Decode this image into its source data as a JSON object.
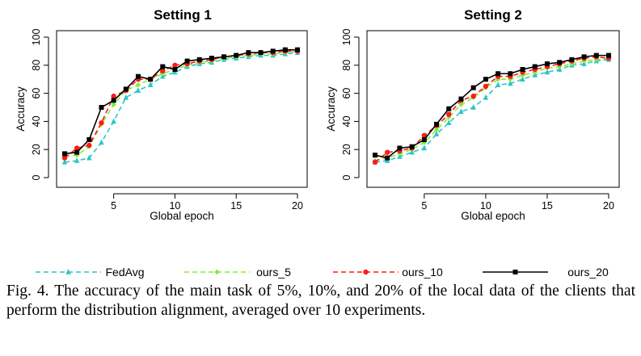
{
  "chart_data": [
    {
      "type": "line",
      "title": "Setting 1",
      "xlabel": "Global epoch",
      "ylabel": "Accuracy",
      "xlim": [
        1,
        20
      ],
      "ylim": [
        0,
        100
      ],
      "xticks": [
        5,
        10,
        15,
        20
      ],
      "yticks": [
        0,
        20,
        40,
        60,
        80,
        100
      ],
      "x": [
        1,
        2,
        3,
        4,
        5,
        6,
        7,
        8,
        9,
        10,
        11,
        12,
        13,
        14,
        15,
        16,
        17,
        18,
        19,
        20
      ],
      "series": [
        {
          "name": "FedAvg",
          "values": [
            11,
            12,
            14,
            25,
            40,
            57,
            62,
            66,
            72,
            75,
            79,
            81,
            82,
            84,
            85,
            86,
            87,
            87,
            88,
            89
          ]
        },
        {
          "name": "ours_5",
          "values": [
            15,
            16,
            22,
            38,
            52,
            62,
            66,
            70,
            74,
            77,
            80,
            82,
            83,
            85,
            86,
            87,
            88,
            88,
            89,
            90
          ]
        },
        {
          "name": "ours_10",
          "values": [
            14,
            21,
            23,
            39,
            58,
            62,
            70,
            70,
            76,
            80,
            81,
            83,
            84,
            86,
            87,
            88,
            89,
            89,
            90,
            90
          ]
        },
        {
          "name": "ours_20",
          "values": [
            17,
            18,
            27,
            50,
            55,
            63,
            72,
            70,
            79,
            77,
            83,
            84,
            85,
            86,
            87,
            89,
            89,
            90,
            91,
            91
          ]
        }
      ]
    },
    {
      "type": "line",
      "title": "Setting 2",
      "xlabel": "Global epoch",
      "ylabel": "Accuracy",
      "xlim": [
        1,
        20
      ],
      "ylim": [
        0,
        100
      ],
      "xticks": [
        5,
        10,
        15,
        20
      ],
      "yticks": [
        0,
        20,
        40,
        60,
        80,
        100
      ],
      "x": [
        1,
        2,
        3,
        4,
        5,
        6,
        7,
        8,
        9,
        10,
        11,
        12,
        13,
        14,
        15,
        16,
        17,
        18,
        19,
        20
      ],
      "series": [
        {
          "name": "FedAvg",
          "values": [
            11,
            12,
            15,
            18,
            21,
            31,
            39,
            47,
            50,
            57,
            66,
            67,
            70,
            73,
            75,
            77,
            80,
            81,
            83,
            84
          ]
        },
        {
          "name": "ours_5",
          "values": [
            12,
            14,
            17,
            20,
            25,
            34,
            43,
            52,
            57,
            64,
            70,
            70,
            73,
            75,
            78,
            79,
            81,
            83,
            84,
            85
          ]
        },
        {
          "name": "ours_10",
          "values": [
            11,
            18,
            19,
            21,
            30,
            37,
            45,
            55,
            58,
            65,
            72,
            72,
            75,
            77,
            79,
            81,
            83,
            85,
            86,
            85
          ]
        },
        {
          "name": "ours_20",
          "values": [
            16,
            14,
            21,
            22,
            27,
            38,
            49,
            56,
            64,
            70,
            74,
            74,
            77,
            79,
            81,
            82,
            84,
            86,
            87,
            87
          ]
        }
      ]
    }
  ],
  "series_style": [
    {
      "name": "FedAvg",
      "color": "#2ec4c4",
      "marker": "triangle",
      "dash": "6,4"
    },
    {
      "name": "ours_5",
      "color": "#7ef02c",
      "marker": "diamond",
      "dash": "6,4"
    },
    {
      "name": "ours_10",
      "color": "#ff1a1a",
      "marker": "circle",
      "dash": "6,4"
    },
    {
      "name": "ours_20",
      "color": "#000000",
      "marker": "square",
      "dash": ""
    }
  ],
  "legend": {
    "placement": "bottom",
    "items": [
      "FedAvg",
      "ours_5",
      "ours_10",
      "ours_20"
    ]
  },
  "caption": "Fig. 4.  The accuracy of the main task of 5%, 10%, and 20% of the local data of the clients that perform the distribution alignment, averaged over 10 experiments."
}
